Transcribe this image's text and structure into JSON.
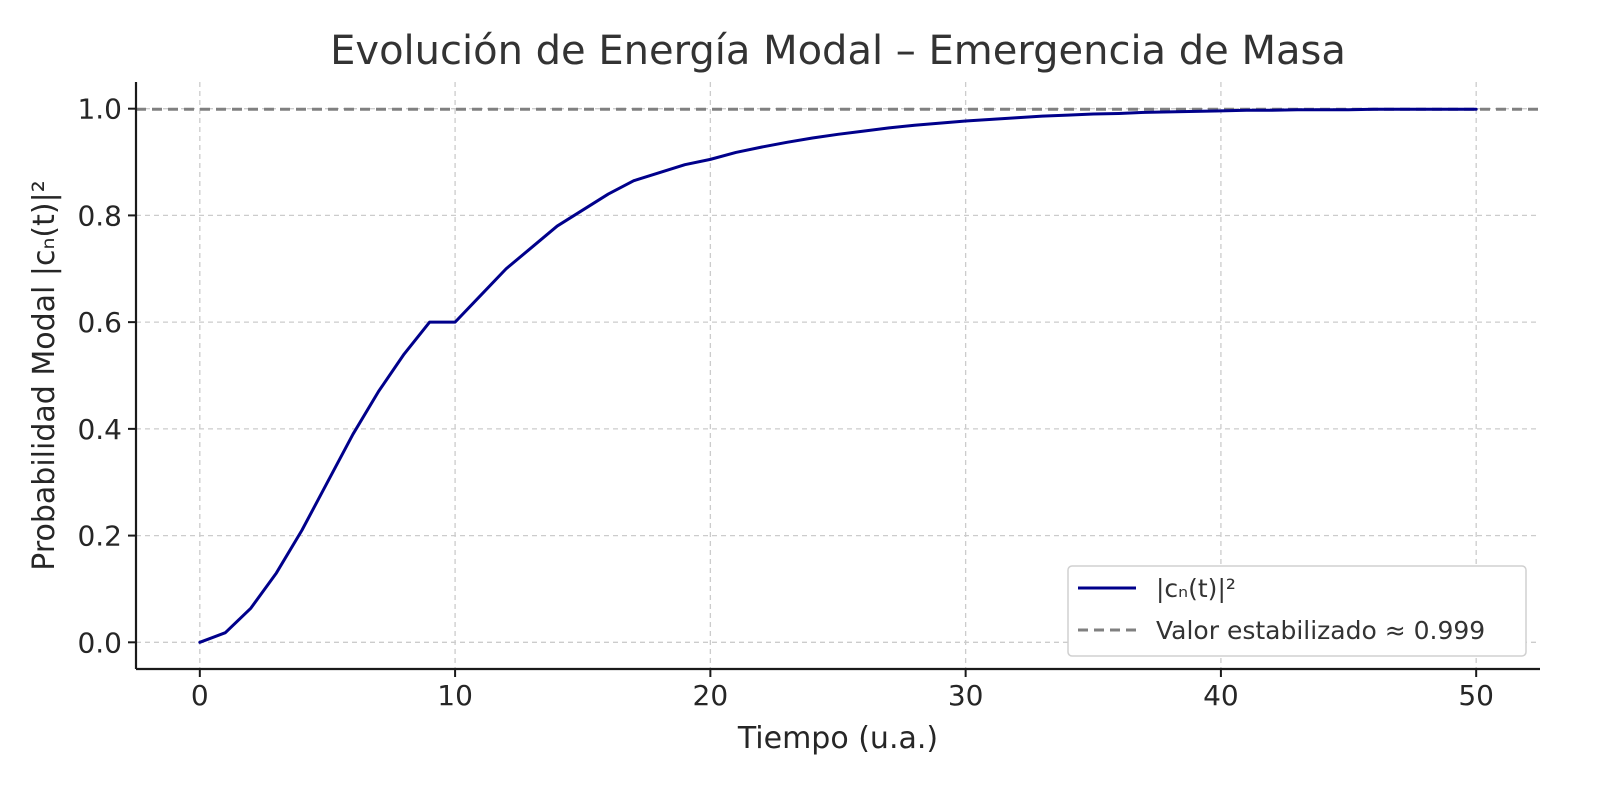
{
  "chart_data": {
    "type": "line",
    "title": "Evolución de Energía Modal – Emergencia de Masa",
    "xlabel": "Tiempo (u.a.)",
    "ylabel": "Probabilidad Modal |cₙ(t)|²",
    "xlim": [
      -2.5,
      52.5
    ],
    "ylim": [
      -0.05,
      1.05
    ],
    "xticks": [
      0,
      10,
      20,
      30,
      40,
      50
    ],
    "xtick_labels": [
      "0",
      "10",
      "20",
      "30",
      "40",
      "50"
    ],
    "yticks": [
      0.0,
      0.2,
      0.4,
      0.6,
      0.8,
      1.0
    ],
    "ytick_labels": [
      "0.0",
      "0.2",
      "0.4",
      "0.6",
      "0.8",
      "1.0"
    ],
    "grid": true,
    "legend_position": "lower-right",
    "series": [
      {
        "name": "|cₙ(t)|²",
        "color": "#00008b",
        "style": "solid",
        "x": [
          0,
          1,
          2,
          3,
          4,
          5,
          6,
          7,
          8,
          9,
          10,
          11,
          12,
          13,
          14,
          15,
          16,
          17,
          18,
          19,
          20,
          21,
          22,
          23,
          24,
          25,
          26,
          27,
          28,
          29,
          30,
          31,
          32,
          33,
          34,
          35,
          36,
          37,
          38,
          39,
          40,
          41,
          42,
          43,
          44,
          45,
          46,
          47,
          48,
          49,
          50
        ],
        "y": [
          0.0,
          0.018,
          0.064,
          0.13,
          0.21,
          0.3,
          0.39,
          0.47,
          0.54,
          0.6,
          0.6,
          0.65,
          0.7,
          0.74,
          0.78,
          0.81,
          0.84,
          0.865,
          0.88,
          0.895,
          0.905,
          0.918,
          0.928,
          0.937,
          0.945,
          0.952,
          0.958,
          0.964,
          0.969,
          0.973,
          0.977,
          0.98,
          0.983,
          0.986,
          0.988,
          0.99,
          0.991,
          0.993,
          0.994,
          0.995,
          0.996,
          0.997,
          0.997,
          0.998,
          0.998,
          0.998,
          0.999,
          0.999,
          0.999,
          0.999,
          0.999
        ]
      },
      {
        "name": "Valor estabilizado ≈ 0.999",
        "color": "#808080",
        "style": "dashed",
        "y_constant": 0.999
      }
    ]
  }
}
